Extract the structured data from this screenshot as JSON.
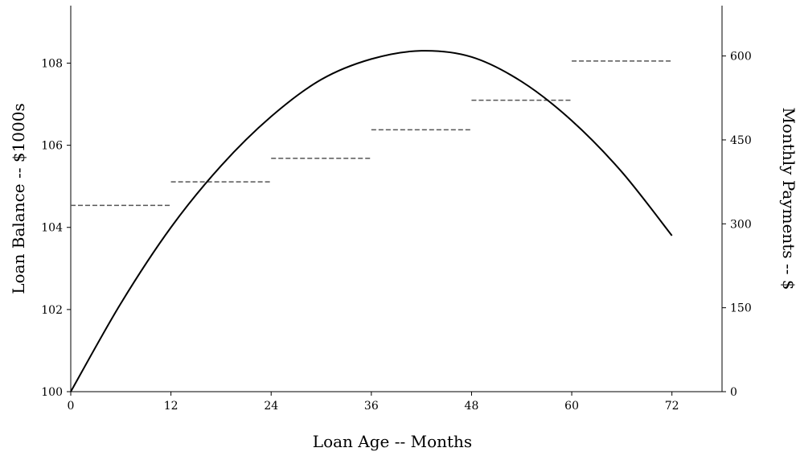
{
  "chart_data": {
    "type": "line",
    "xlabel": "Loan Age -- Months",
    "ylabel": "Loan Balance -- $1000s",
    "y2label": "Monthly Payments -- $",
    "x_ticks": [
      0,
      12,
      24,
      36,
      48,
      60,
      72
    ],
    "y_ticks": [
      100,
      102,
      104,
      106,
      108
    ],
    "y2_ticks": [
      0,
      150,
      300,
      450,
      600
    ],
    "xlim": [
      0,
      78
    ],
    "ylim": [
      100,
      109.4
    ],
    "y2lim": [
      0,
      690
    ],
    "grid": false,
    "series": [
      {
        "axis": "left",
        "style": "solid",
        "x": [
          0,
          6,
          12,
          18,
          24,
          30,
          36,
          42,
          48,
          54,
          60,
          66,
          72
        ],
        "y": [
          100.0,
          102.15,
          104.0,
          105.5,
          106.7,
          107.6,
          108.1,
          108.3,
          108.15,
          107.55,
          106.6,
          105.35,
          103.8
        ]
      },
      {
        "axis": "right",
        "style": "dashed-steps",
        "x_start": [
          0,
          12,
          24,
          36,
          48,
          60
        ],
        "x_end": [
          12,
          24,
          36,
          48,
          60,
          72
        ],
        "values": [
          333,
          375,
          417,
          468,
          521,
          591
        ]
      }
    ]
  }
}
